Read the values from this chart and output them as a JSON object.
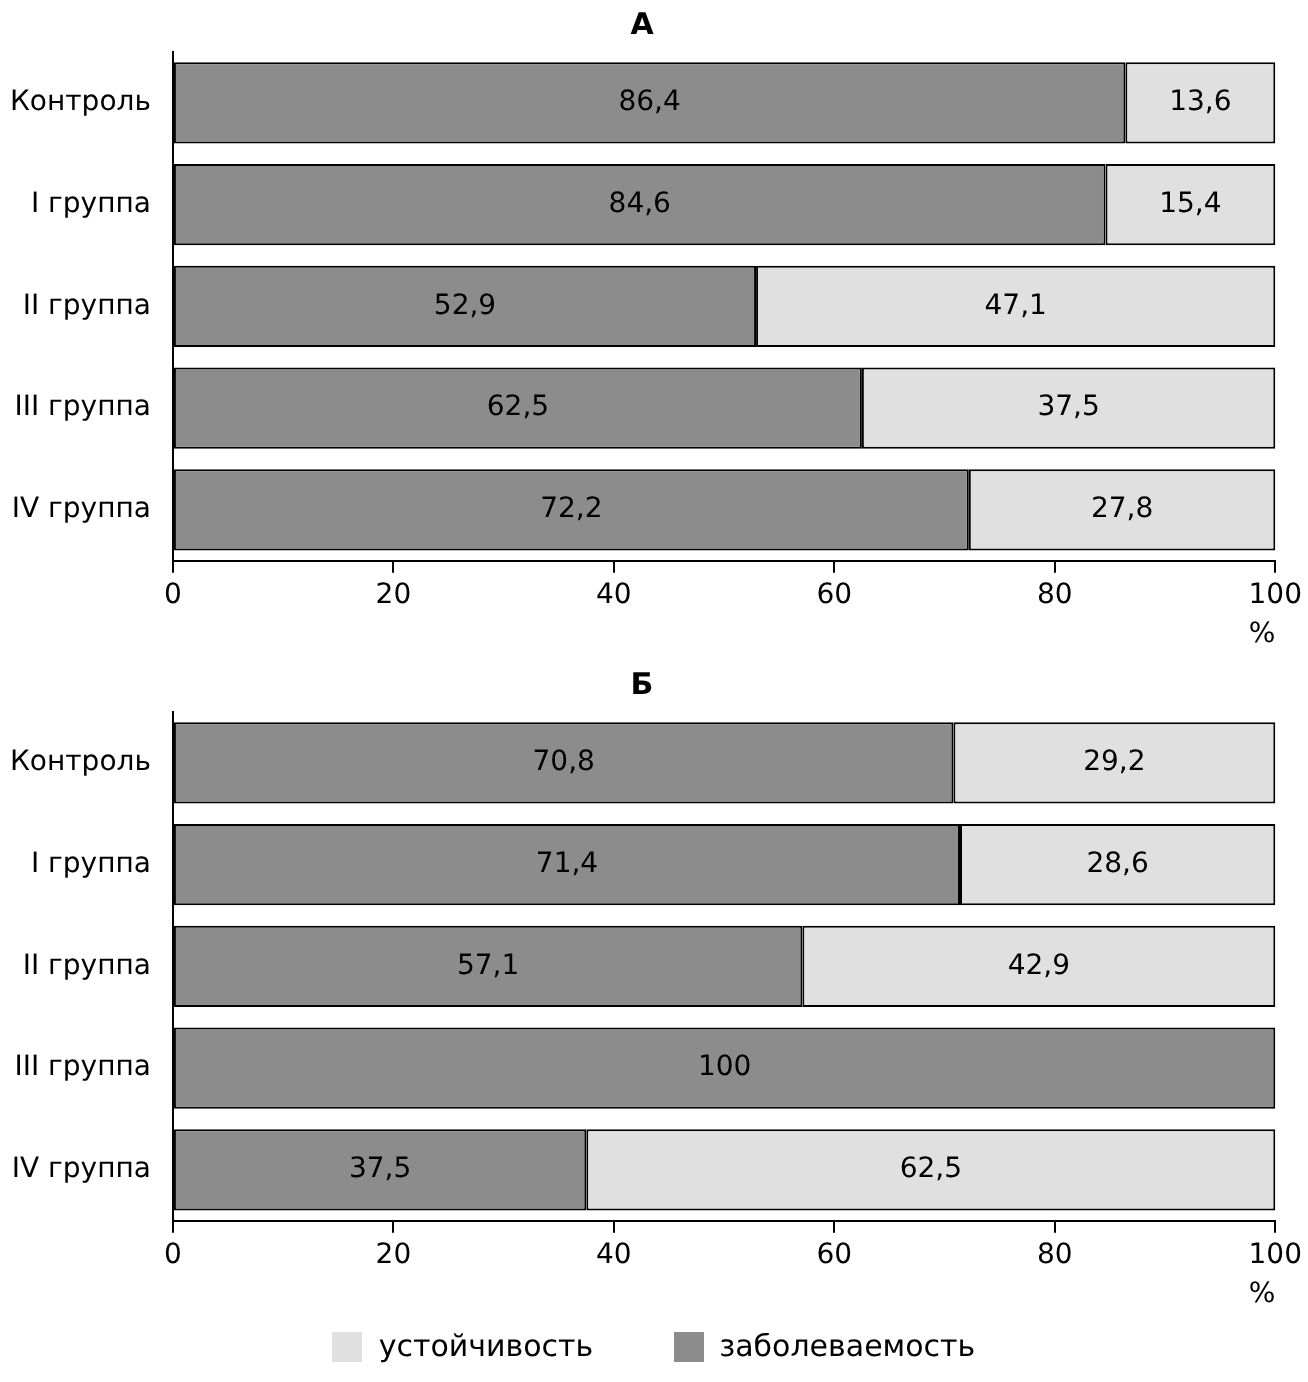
{
  "chart_data": [
    {
      "type": "bar",
      "title": "А",
      "orientation": "horizontal",
      "stacked": true,
      "categories": [
        "Контроль",
        "I группа",
        "II группа",
        "III группа",
        "IV группа"
      ],
      "xlabel": "%",
      "xlim": [
        0,
        100
      ],
      "xticks": [
        0,
        20,
        40,
        60,
        80,
        100
      ],
      "grid": false,
      "legend": false,
      "series": [
        {
          "color": "#8c8c8c",
          "values": [
            86.4,
            84.6,
            52.9,
            62.5,
            72.2
          ],
          "value_labels": [
            "86,4",
            "84,6",
            "52,9",
            "62,5",
            "72,2"
          ]
        },
        {
          "color": "#e0e0e0",
          "values": [
            13.6,
            15.4,
            47.1,
            37.5,
            27.8
          ],
          "value_labels": [
            "13,6",
            "15,4",
            "47,1",
            "37,5",
            "27,8"
          ]
        }
      ]
    },
    {
      "type": "bar",
      "title": "Б",
      "orientation": "horizontal",
      "stacked": true,
      "categories": [
        "Контроль",
        "I группа",
        "II группа",
        "III группа",
        "IV группа"
      ],
      "xlabel": "%",
      "xlim": [
        0,
        100
      ],
      "xticks": [
        0,
        20,
        40,
        60,
        80,
        100
      ],
      "grid": false,
      "legend": "bottom",
      "series": [
        {
          "name": "заболеваемость",
          "color": "#8c8c8c",
          "values": [
            70.8,
            71.4,
            57.1,
            100,
            37.5
          ],
          "value_labels": [
            "70,8",
            "71,4",
            "57,1",
            "100",
            "37,5"
          ]
        },
        {
          "name": "устойчивость",
          "color": "#e0e0e0",
          "values": [
            29.2,
            28.6,
            42.9,
            0,
            62.5
          ],
          "value_labels": [
            "29,2",
            "28,6",
            "42,9",
            null,
            "62,5"
          ]
        }
      ]
    }
  ]
}
